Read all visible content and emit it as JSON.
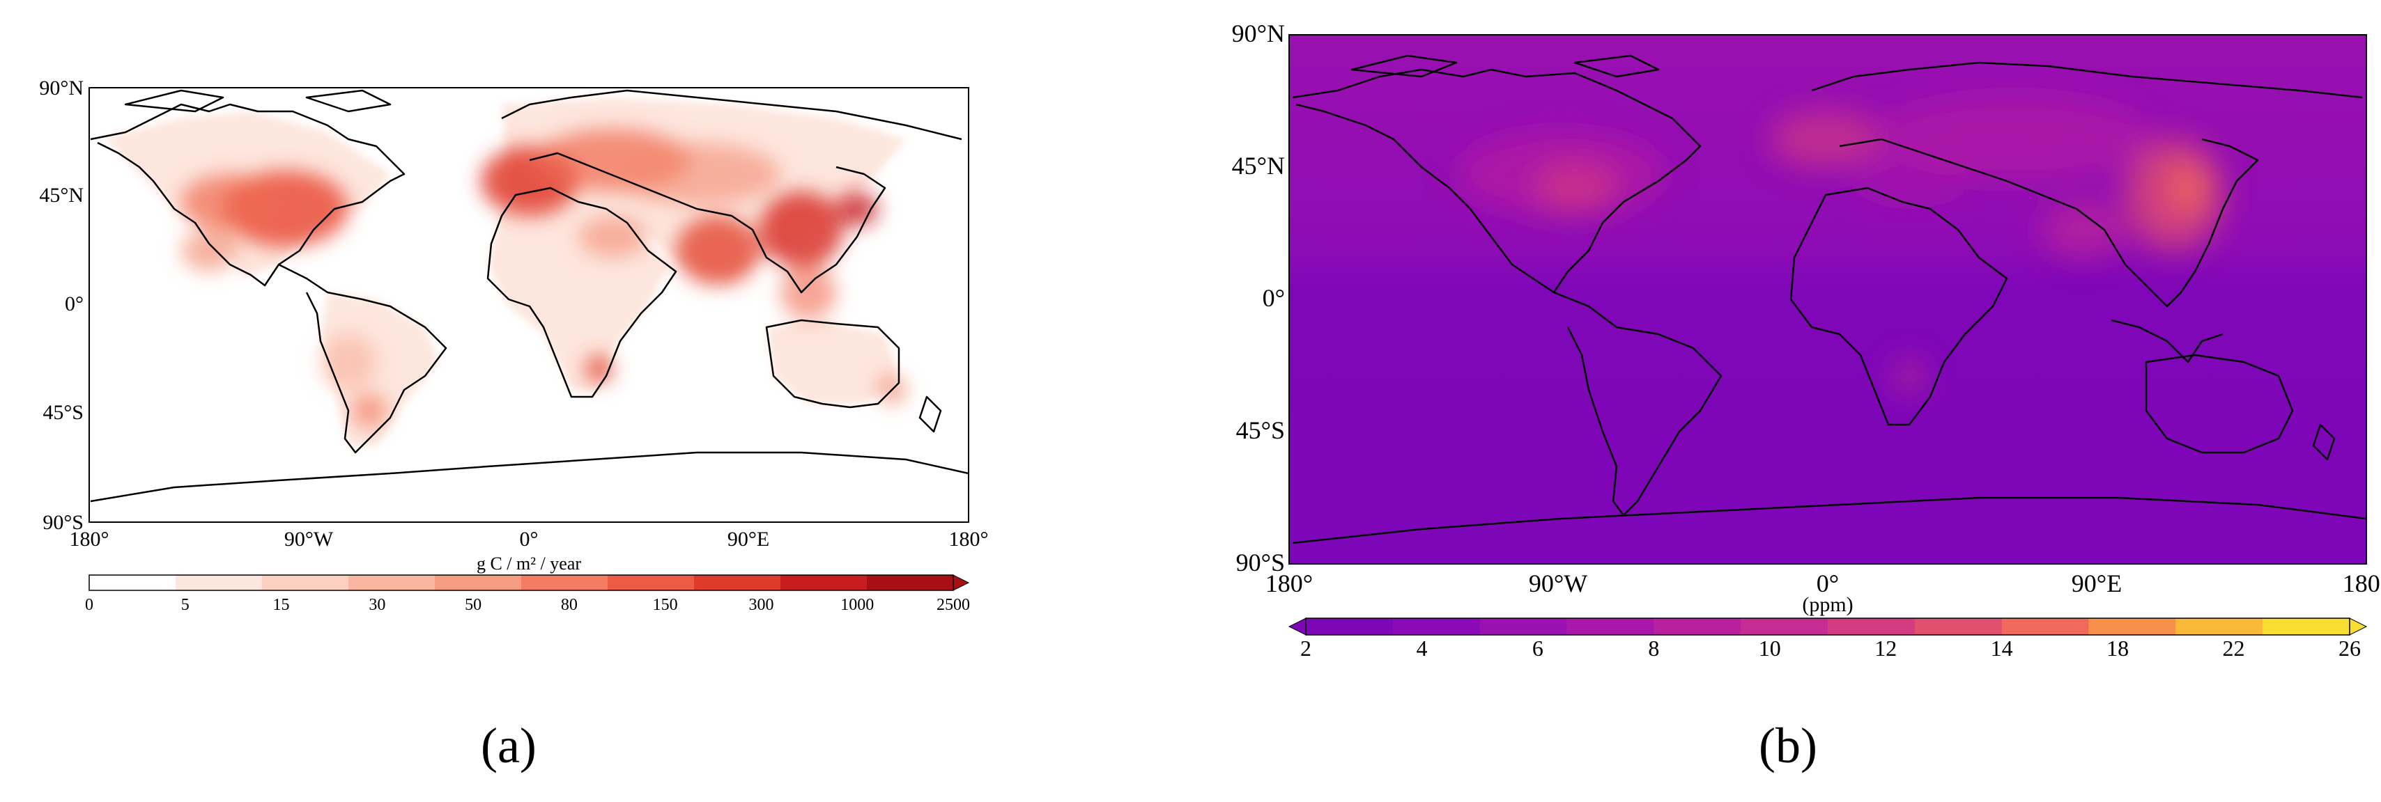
{
  "panels": {
    "a": {
      "caption": "(a)",
      "lat_labels": [
        "90°N",
        "45°N",
        "0°",
        "45°S",
        "90°S"
      ],
      "lon_labels": [
        "180°",
        "90°W",
        "0°",
        "90°E",
        "180°"
      ],
      "colorbar_title": "g C / m² / year",
      "colorbar_ticks": [
        "0",
        "5",
        "15",
        "30",
        "50",
        "80",
        "150",
        "300",
        "1000",
        "2500"
      ],
      "colors": [
        "#ffffff",
        "#fde6de",
        "#fbd0c0",
        "#f9b7a1",
        "#f69c82",
        "#f27d62",
        "#ec5c45",
        "#df3b2c",
        "#c81d1f",
        "#a80f15"
      ]
    },
    "b": {
      "caption": "(b)",
      "lat_labels": [
        "90°N",
        "45°N",
        "0°",
        "45°S",
        "90°S"
      ],
      "lon_labels": [
        "180°",
        "90°W",
        "0°",
        "90°E",
        "180°"
      ],
      "colorbar_title": "(ppm)",
      "colorbar_ticks": [
        "2",
        "4",
        "6",
        "8",
        "10",
        "12",
        "14",
        "18",
        "22",
        "26"
      ],
      "colors": [
        "#7d06b8",
        "#8b0ab7",
        "#9a10b0",
        "#a817aa",
        "#b820a0",
        "#c62c93",
        "#d43c82",
        "#e2506f",
        "#ef6a5a",
        "#f7904a",
        "#fbb93a",
        "#f9dd31"
      ]
    }
  }
}
